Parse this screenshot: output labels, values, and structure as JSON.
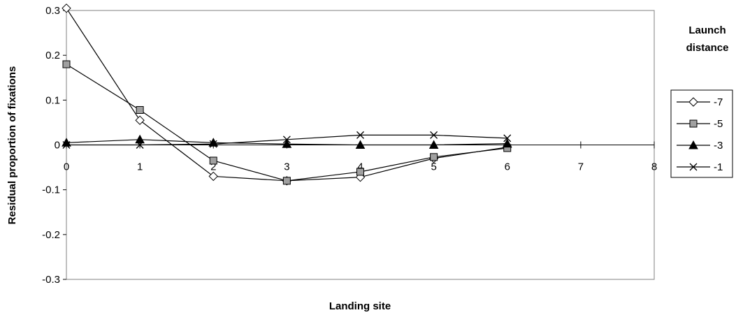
{
  "chart_data": {
    "type": "line",
    "xlabel": "Landing site",
    "ylabel": "Residual proportion of fixations",
    "xlim": [
      0,
      8
    ],
    "ylim": [
      -0.3,
      0.3
    ],
    "x_ticks": [
      "0",
      "1",
      "2",
      "3",
      "4",
      "5",
      "6",
      "7",
      "8"
    ],
    "y_ticks": [
      "0.3",
      "0.2",
      "0.1",
      "0",
      "-0.1",
      "-0.2",
      "-0.3"
    ],
    "grid": false,
    "legend_title_line1": "Launch",
    "legend_title_line2": "distance",
    "legend_position": "right",
    "series": [
      {
        "name": "-7",
        "marker": "diamond",
        "color": "#ffffff",
        "x": [
          0,
          1,
          2,
          3,
          4,
          5,
          6
        ],
        "values": [
          0.305,
          0.055,
          -0.07,
          -0.08,
          -0.072,
          -0.03,
          -0.005
        ]
      },
      {
        "name": "-5",
        "marker": "square",
        "color": "#a0a0a0",
        "x": [
          0,
          1,
          2,
          3,
          4,
          5,
          6
        ],
        "values": [
          0.18,
          0.078,
          -0.035,
          -0.08,
          -0.06,
          -0.027,
          -0.007
        ]
      },
      {
        "name": "-3",
        "marker": "triangle",
        "color": "#000000",
        "x": [
          0,
          1,
          2,
          3,
          4,
          5,
          6
        ],
        "values": [
          0.005,
          0.012,
          0.005,
          0.002,
          0.0,
          0.0,
          0.003
        ]
      },
      {
        "name": "-1",
        "marker": "x",
        "color": "#000000",
        "x": [
          0,
          1,
          2,
          3,
          4,
          5,
          6
        ],
        "values": [
          0.0,
          0.0,
          0.002,
          0.012,
          0.022,
          0.022,
          0.015
        ]
      }
    ]
  }
}
